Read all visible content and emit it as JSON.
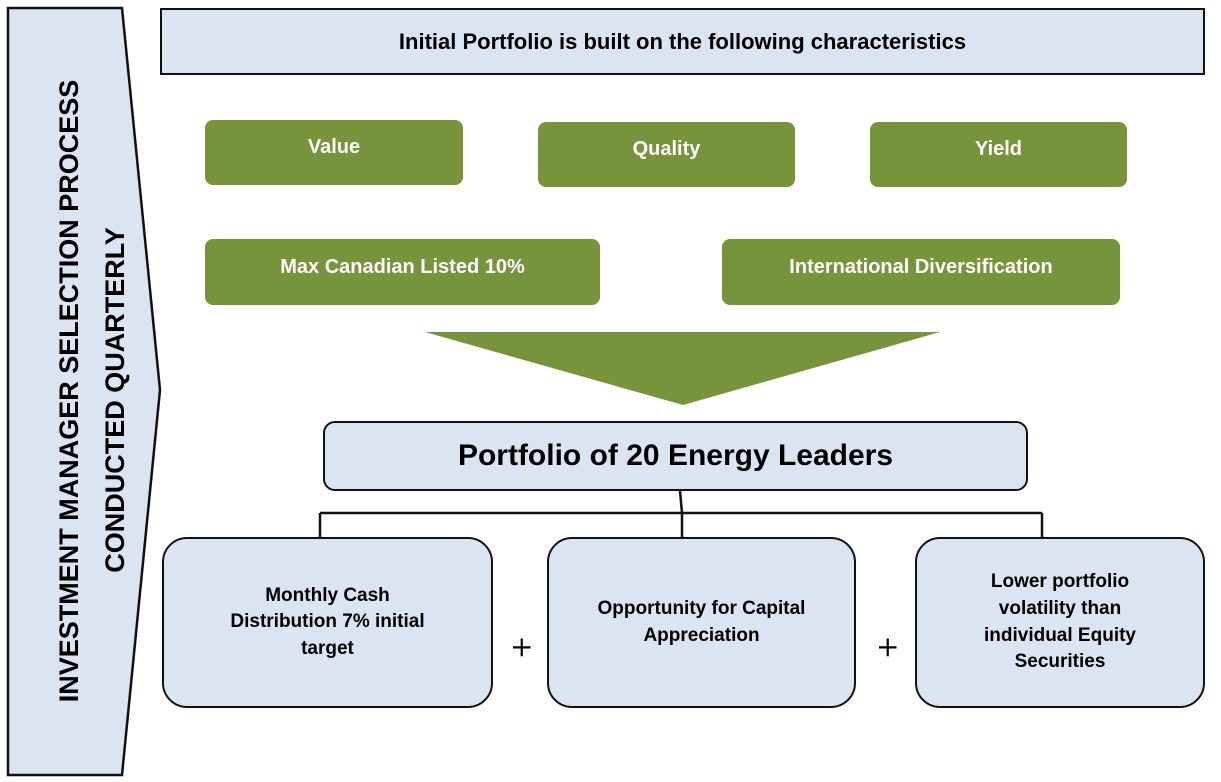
{
  "side_label": [
    "INVESTMENT MANAGER SELECTION PROCESS",
    "CONDUCTED QUARTERLY"
  ],
  "header": {
    "title": "Initial Portfolio is built on the following characteristics"
  },
  "characteristics": [
    "Value",
    "Quality",
    "Yield",
    "Max Canadian Listed 10%",
    "International Diversification"
  ],
  "result": {
    "title": "Portfolio of 20 Energy Leaders"
  },
  "outcomes": [
    "Monthly Cash Distribution 7% initial target",
    "Opportunity for Capital Appreciation",
    "Lower portfolio volatility than individual Equity Securities"
  ],
  "operators": [
    "+",
    "+"
  ]
}
